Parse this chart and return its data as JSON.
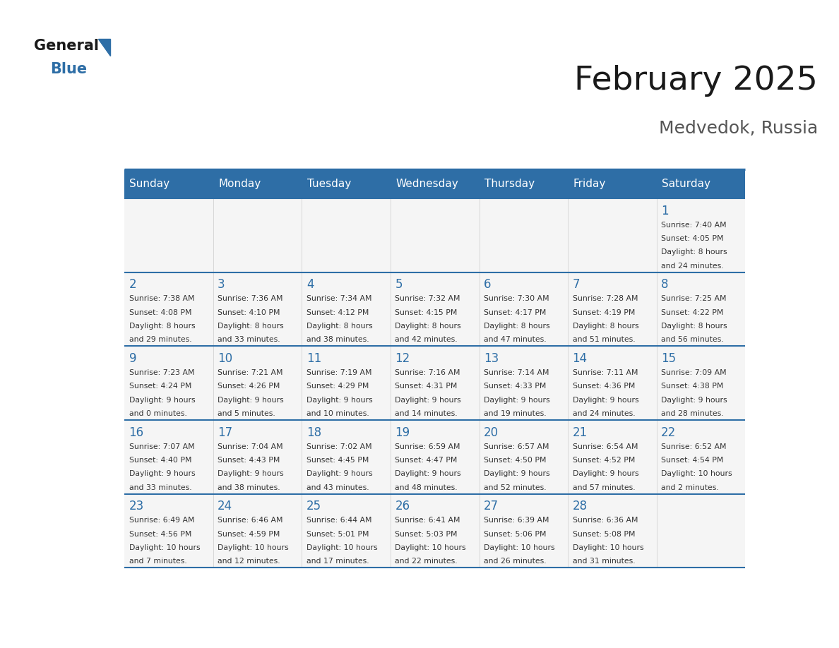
{
  "title": "February 2025",
  "subtitle": "Medvedok, Russia",
  "header_bg": "#2E6EA6",
  "header_text": "#FFFFFF",
  "day_number_color": "#2E6EA6",
  "text_color": "#333333",
  "line_color": "#2E6EA6",
  "days_of_week": [
    "Sunday",
    "Monday",
    "Tuesday",
    "Wednesday",
    "Thursday",
    "Friday",
    "Saturday"
  ],
  "calendar_data": [
    [
      null,
      null,
      null,
      null,
      null,
      null,
      {
        "day": 1,
        "sunrise": "7:40 AM",
        "sunset": "4:05 PM",
        "daylight_line1": "Daylight: 8 hours",
        "daylight_line2": "and 24 minutes."
      }
    ],
    [
      {
        "day": 2,
        "sunrise": "7:38 AM",
        "sunset": "4:08 PM",
        "daylight_line1": "Daylight: 8 hours",
        "daylight_line2": "and 29 minutes."
      },
      {
        "day": 3,
        "sunrise": "7:36 AM",
        "sunset": "4:10 PM",
        "daylight_line1": "Daylight: 8 hours",
        "daylight_line2": "and 33 minutes."
      },
      {
        "day": 4,
        "sunrise": "7:34 AM",
        "sunset": "4:12 PM",
        "daylight_line1": "Daylight: 8 hours",
        "daylight_line2": "and 38 minutes."
      },
      {
        "day": 5,
        "sunrise": "7:32 AM",
        "sunset": "4:15 PM",
        "daylight_line1": "Daylight: 8 hours",
        "daylight_line2": "and 42 minutes."
      },
      {
        "day": 6,
        "sunrise": "7:30 AM",
        "sunset": "4:17 PM",
        "daylight_line1": "Daylight: 8 hours",
        "daylight_line2": "and 47 minutes."
      },
      {
        "day": 7,
        "sunrise": "7:28 AM",
        "sunset": "4:19 PM",
        "daylight_line1": "Daylight: 8 hours",
        "daylight_line2": "and 51 minutes."
      },
      {
        "day": 8,
        "sunrise": "7:25 AM",
        "sunset": "4:22 PM",
        "daylight_line1": "Daylight: 8 hours",
        "daylight_line2": "and 56 minutes."
      }
    ],
    [
      {
        "day": 9,
        "sunrise": "7:23 AM",
        "sunset": "4:24 PM",
        "daylight_line1": "Daylight: 9 hours",
        "daylight_line2": "and 0 minutes."
      },
      {
        "day": 10,
        "sunrise": "7:21 AM",
        "sunset": "4:26 PM",
        "daylight_line1": "Daylight: 9 hours",
        "daylight_line2": "and 5 minutes."
      },
      {
        "day": 11,
        "sunrise": "7:19 AM",
        "sunset": "4:29 PM",
        "daylight_line1": "Daylight: 9 hours",
        "daylight_line2": "and 10 minutes."
      },
      {
        "day": 12,
        "sunrise": "7:16 AM",
        "sunset": "4:31 PM",
        "daylight_line1": "Daylight: 9 hours",
        "daylight_line2": "and 14 minutes."
      },
      {
        "day": 13,
        "sunrise": "7:14 AM",
        "sunset": "4:33 PM",
        "daylight_line1": "Daylight: 9 hours",
        "daylight_line2": "and 19 minutes."
      },
      {
        "day": 14,
        "sunrise": "7:11 AM",
        "sunset": "4:36 PM",
        "daylight_line1": "Daylight: 9 hours",
        "daylight_line2": "and 24 minutes."
      },
      {
        "day": 15,
        "sunrise": "7:09 AM",
        "sunset": "4:38 PM",
        "daylight_line1": "Daylight: 9 hours",
        "daylight_line2": "and 28 minutes."
      }
    ],
    [
      {
        "day": 16,
        "sunrise": "7:07 AM",
        "sunset": "4:40 PM",
        "daylight_line1": "Daylight: 9 hours",
        "daylight_line2": "and 33 minutes."
      },
      {
        "day": 17,
        "sunrise": "7:04 AM",
        "sunset": "4:43 PM",
        "daylight_line1": "Daylight: 9 hours",
        "daylight_line2": "and 38 minutes."
      },
      {
        "day": 18,
        "sunrise": "7:02 AM",
        "sunset": "4:45 PM",
        "daylight_line1": "Daylight: 9 hours",
        "daylight_line2": "and 43 minutes."
      },
      {
        "day": 19,
        "sunrise": "6:59 AM",
        "sunset": "4:47 PM",
        "daylight_line1": "Daylight: 9 hours",
        "daylight_line2": "and 48 minutes."
      },
      {
        "day": 20,
        "sunrise": "6:57 AM",
        "sunset": "4:50 PM",
        "daylight_line1": "Daylight: 9 hours",
        "daylight_line2": "and 52 minutes."
      },
      {
        "day": 21,
        "sunrise": "6:54 AM",
        "sunset": "4:52 PM",
        "daylight_line1": "Daylight: 9 hours",
        "daylight_line2": "and 57 minutes."
      },
      {
        "day": 22,
        "sunrise": "6:52 AM",
        "sunset": "4:54 PM",
        "daylight_line1": "Daylight: 10 hours",
        "daylight_line2": "and 2 minutes."
      }
    ],
    [
      {
        "day": 23,
        "sunrise": "6:49 AM",
        "sunset": "4:56 PM",
        "daylight_line1": "Daylight: 10 hours",
        "daylight_line2": "and 7 minutes."
      },
      {
        "day": 24,
        "sunrise": "6:46 AM",
        "sunset": "4:59 PM",
        "daylight_line1": "Daylight: 10 hours",
        "daylight_line2": "and 12 minutes."
      },
      {
        "day": 25,
        "sunrise": "6:44 AM",
        "sunset": "5:01 PM",
        "daylight_line1": "Daylight: 10 hours",
        "daylight_line2": "and 17 minutes."
      },
      {
        "day": 26,
        "sunrise": "6:41 AM",
        "sunset": "5:03 PM",
        "daylight_line1": "Daylight: 10 hours",
        "daylight_line2": "and 22 minutes."
      },
      {
        "day": 27,
        "sunrise": "6:39 AM",
        "sunset": "5:06 PM",
        "daylight_line1": "Daylight: 10 hours",
        "daylight_line2": "and 26 minutes."
      },
      {
        "day": 28,
        "sunrise": "6:36 AM",
        "sunset": "5:08 PM",
        "daylight_line1": "Daylight: 10 hours",
        "daylight_line2": "and 31 minutes."
      },
      null
    ]
  ]
}
